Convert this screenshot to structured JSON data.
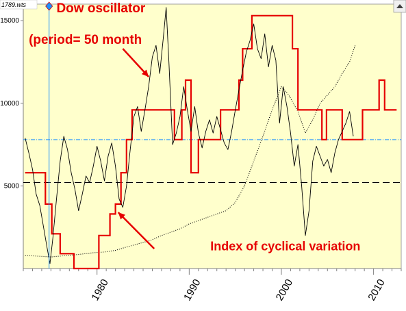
{
  "window": {
    "file_label": "1789.wts"
  },
  "colors": {
    "plot_bg": "#ffffcc",
    "oscillator": "#000000",
    "cyclical_index": "#e60000",
    "dotted_series": "#000000",
    "annotation": "#e60000",
    "marker_line": "#1e90ff",
    "ref_line_upper": "#1e90ff",
    "ref_line_lower": "#000000"
  },
  "chart_data": {
    "type": "line",
    "title": "",
    "xlabel": "",
    "ylabel": "",
    "xlim": [
      1972,
      2013
    ],
    "ylim": [
      0,
      16000
    ],
    "y_ticks": [
      5000,
      10000,
      15000
    ],
    "y_tick_labels": [
      "5000",
      "10000",
      "15000"
    ],
    "x_ticks": [
      1980,
      1990,
      2000,
      2010
    ],
    "x_tick_labels": [
      "1980",
      "1990",
      "2000",
      "2010"
    ],
    "grid": false,
    "legend": "none",
    "reference_lines": [
      {
        "y": 7800,
        "style": "dash-dot"
      },
      {
        "y": 5200,
        "style": "dashed"
      }
    ],
    "vertical_marker_x": 1974.8,
    "series": [
      {
        "name": "",
        "style": "thin-line",
        "x": [
          1972.2,
          1972.6,
          1973.0,
          1973.4,
          1973.8,
          1974.2,
          1974.6,
          1974.9,
          1975.2,
          1975.6,
          1976.0,
          1976.4,
          1976.8,
          1977.2,
          1977.6,
          1978.0,
          1978.4,
          1978.8,
          1979.2,
          1979.6,
          1980.0,
          1980.4,
          1980.8,
          1981.2,
          1981.6,
          1982.0,
          1982.4,
          1982.8,
          1983.2,
          1983.6,
          1984.0,
          1984.4,
          1984.8,
          1985.2,
          1985.6,
          1986.0,
          1986.4,
          1986.8,
          1987.2,
          1987.5,
          1987.8,
          1988.2,
          1988.6,
          1989.0,
          1989.4,
          1989.8,
          1990.2,
          1990.6,
          1991.0,
          1991.4,
          1991.8,
          1992.2,
          1992.6,
          1993.0,
          1993.4,
          1993.8,
          1994.2,
          1994.6,
          1995.0,
          1995.4,
          1995.8,
          1996.2,
          1996.6,
          1997.0,
          1997.4,
          1997.8,
          1998.2,
          1998.6,
          1999.0,
          1999.4,
          1999.8,
          2000.2,
          2000.6,
          2001.0,
          2001.4,
          2001.8,
          2002.2,
          2002.6,
          2003.0,
          2003.4,
          2003.8,
          2004.2,
          2004.6,
          2005.0,
          2005.4,
          2005.8,
          2006.2,
          2006.6,
          2007.0,
          2007.4,
          2007.8
        ],
        "y": [
          7900,
          7000,
          6000,
          4500,
          3800,
          2500,
          1200,
          300,
          1800,
          4200,
          6500,
          8000,
          7200,
          5800,
          4800,
          3500,
          4500,
          5600,
          5200,
          6200,
          7400,
          6500,
          5300,
          6800,
          7600,
          6200,
          4200,
          3700,
          5000,
          7200,
          9200,
          9800,
          8300,
          9600,
          11000,
          12800,
          13500,
          11800,
          14000,
          15800,
          12500,
          7500,
          8200,
          9200,
          11000,
          9600,
          8300,
          9800,
          8200,
          7300,
          8300,
          9000,
          8200,
          9200,
          8400,
          7600,
          7200,
          8300,
          9600,
          10800,
          12000,
          13100,
          13800,
          14800,
          13300,
          12700,
          14200,
          12200,
          13500,
          12600,
          8800,
          11000,
          9800,
          8200,
          6200,
          7500,
          5000,
          2000,
          3500,
          6500,
          7400,
          6800,
          6200,
          6600,
          5800,
          7000,
          7800,
          8300,
          8800,
          9500,
          8000
        ]
      },
      {
        "name": "",
        "style": "thick-step",
        "x": [
          1972.2,
          1974.4,
          1974.4,
          1975.1,
          1975.1,
          1976.0,
          1976.0,
          1977.5,
          1977.5,
          1980.2,
          1980.2,
          1981.4,
          1981.4,
          1982.0,
          1982.0,
          1982.6,
          1982.6,
          1983.2,
          1983.2,
          1983.8,
          1983.8,
          1984.8,
          1984.8,
          1988.4,
          1988.4,
          1989.2,
          1989.2,
          1989.6,
          1989.6,
          1990.2,
          1990.2,
          1991.0,
          1991.0,
          1993.4,
          1993.4,
          1995.4,
          1995.4,
          1995.8,
          1995.8,
          1996.8,
          1996.8,
          2001.2,
          2001.2,
          2001.8,
          2001.8,
          2004.4,
          2004.4,
          2004.9,
          2004.9,
          2006.6,
          2006.6,
          2008.8,
          2008.8,
          2010.6,
          2010.6,
          2011.2,
          2011.2,
          2012.5
        ],
        "y": [
          5800,
          5800,
          3900,
          3900,
          2100,
          2100,
          900,
          900,
          0,
          0,
          2000,
          2000,
          3300,
          3300,
          3900,
          3900,
          5800,
          5800,
          7800,
          7800,
          9600,
          9600,
          9600,
          9600,
          7800,
          7800,
          9600,
          9600,
          11400,
          11400,
          5800,
          5800,
          7800,
          7800,
          9600,
          9600,
          11400,
          11400,
          13300,
          13300,
          15300,
          15300,
          13300,
          13300,
          9600,
          9600,
          7800,
          7800,
          9600,
          9600,
          7800,
          7800,
          9600,
          9600,
          11400,
          11400,
          9600,
          9600
        ]
      },
      {
        "name": "",
        "style": "dotted",
        "x": [
          1972.2,
          1973.5,
          1975.0,
          1976.5,
          1978.0,
          1979.5,
          1980.8,
          1982.0,
          1983.2,
          1984.5,
          1985.8,
          1987.0,
          1988.0,
          1989.0,
          1990.0,
          1991.0,
          1992.0,
          1993.0,
          1994.0,
          1995.0,
          1996.0,
          1997.0,
          1998.0,
          1999.0,
          2000.0,
          2000.8,
          2001.8,
          2002.6,
          2003.4,
          2004.2,
          2005.0,
          2005.8,
          2006.6,
          2007.4,
          2008.0
        ],
        "y": [
          800,
          750,
          700,
          780,
          850,
          950,
          1000,
          1100,
          1300,
          1500,
          1700,
          2000,
          2200,
          2400,
          2700,
          2900,
          3100,
          3300,
          3500,
          4000,
          5000,
          6500,
          8000,
          9600,
          11000,
          10500,
          9500,
          8200,
          9000,
          10000,
          10500,
          11000,
          11800,
          12500,
          13500
        ]
      }
    ],
    "annotations": [
      {
        "text": "Dow oscillator",
        "x": 1975.6,
        "y": 15500
      },
      {
        "text": "(period=  50 month",
        "x": 1972.6,
        "y": 13600
      },
      {
        "text": "Index of cyclical variation",
        "x": 1992.3,
        "y": 1100
      }
    ],
    "arrows": [
      {
        "from": [
          1982.8,
          13300
        ],
        "to": [
          1985.6,
          11600
        ]
      },
      {
        "from": [
          1986.2,
          1200
        ],
        "to": [
          1982.3,
          3400
        ]
      }
    ]
  }
}
